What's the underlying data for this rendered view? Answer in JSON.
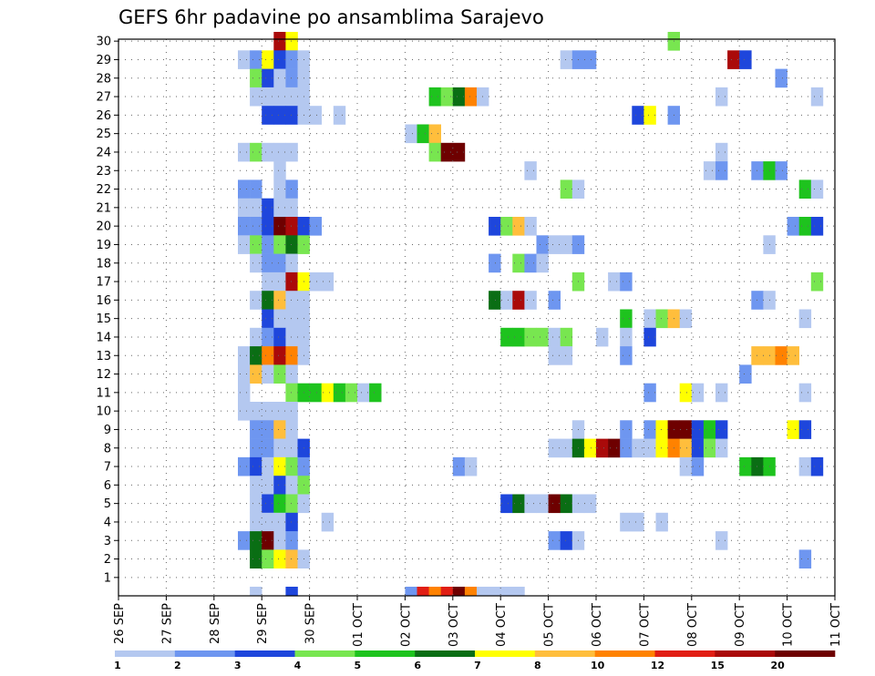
{
  "chart_data": {
    "type": "heatmap",
    "title": "GEFS 6hr padavine po ansamblima Sarajevo",
    "xlabel": "",
    "ylabel": "",
    "x_tick_labels": [
      "26 SEP",
      "27 SEP",
      "28 SEP",
      "29 SEP",
      "30 SEP",
      "01 OCT",
      "02 OCT",
      "03 OCT",
      "04 OCT",
      "05 OCT",
      "06 OCT",
      "07 OCT",
      "08 OCT",
      "09 OCT",
      "10 OCT",
      "11 OCT"
    ],
    "y_tick_labels": [
      "1",
      "2",
      "3",
      "4",
      "5",
      "6",
      "7",
      "8",
      "9",
      "10",
      "11",
      "12",
      "13",
      "14",
      "15",
      "16",
      "17",
      "18",
      "19",
      "20",
      "21",
      "22",
      "23",
      "24",
      "25",
      "26",
      "27",
      "28",
      "29",
      "30"
    ],
    "x_unit": "6-hour step from 26 SEP 00Z (4 steps per day)",
    "y_unit": "ensemble member",
    "grid": "dotted",
    "colorbar": {
      "labels": [
        "1",
        "2",
        "3",
        "4",
        "5",
        "6",
        "7",
        "8",
        "10",
        "12",
        "15",
        "20"
      ],
      "bins": [
        {
          "label": "1",
          "color": "#b4c8f0"
        },
        {
          "label": "2",
          "color": "#6e96f0"
        },
        {
          "label": "3",
          "color": "#1e46dc"
        },
        {
          "label": "4",
          "color": "#78e650"
        },
        {
          "label": "5",
          "color": "#1ec31e"
        },
        {
          "label": "6",
          "color": "#0a6e14"
        },
        {
          "label": "7",
          "color": "#ffff00"
        },
        {
          "label": "8",
          "color": "#ffbe3c"
        },
        {
          "label": "10",
          "color": "#ff8200"
        },
        {
          "label": "12",
          "color": "#e11e14"
        },
        {
          "label": "15",
          "color": "#aa0a0a"
        },
        {
          "label": "20",
          "color": "#6e0000"
        }
      ]
    },
    "cells": [
      {
        "m": 30,
        "s": [
          [
            13,
            11
          ],
          [
            14,
            7
          ],
          [
            46,
            4
          ]
        ]
      },
      {
        "m": 29,
        "s": [
          [
            10,
            1
          ],
          [
            11,
            2
          ],
          [
            12,
            7
          ],
          [
            13,
            3
          ],
          [
            14,
            2
          ],
          [
            15,
            1
          ],
          [
            37,
            1
          ],
          [
            38,
            2
          ],
          [
            39,
            2
          ],
          [
            51,
            11
          ],
          [
            52,
            3
          ]
        ]
      },
      {
        "m": 28,
        "s": [
          [
            11,
            4
          ],
          [
            12,
            3
          ],
          [
            13,
            1
          ],
          [
            14,
            2
          ],
          [
            15,
            1
          ],
          [
            55,
            2
          ]
        ]
      },
      {
        "m": 27,
        "s": [
          [
            11,
            1
          ],
          [
            12,
            1
          ],
          [
            13,
            1
          ],
          [
            14,
            1
          ],
          [
            15,
            1
          ],
          [
            26,
            5
          ],
          [
            27,
            4
          ],
          [
            28,
            6
          ],
          [
            29,
            9
          ],
          [
            30,
            1
          ],
          [
            50,
            1
          ],
          [
            58,
            1
          ]
        ]
      },
      {
        "m": 26,
        "s": [
          [
            12,
            3
          ],
          [
            13,
            3
          ],
          [
            14,
            3
          ],
          [
            15,
            1
          ],
          [
            16,
            1
          ],
          [
            18,
            1
          ],
          [
            43,
            3
          ],
          [
            44,
            7
          ],
          [
            46,
            2
          ]
        ]
      },
      {
        "m": 25,
        "s": [
          [
            24,
            1
          ],
          [
            25,
            5
          ],
          [
            26,
            8
          ]
        ]
      },
      {
        "m": 24,
        "s": [
          [
            10,
            1
          ],
          [
            11,
            4
          ],
          [
            12,
            1
          ],
          [
            13,
            1
          ],
          [
            14,
            1
          ],
          [
            26,
            4
          ],
          [
            27,
            12
          ],
          [
            28,
            12
          ],
          [
            50,
            1
          ]
        ]
      },
      {
        "m": 23,
        "s": [
          [
            13,
            1
          ],
          [
            34,
            1
          ],
          [
            49,
            1
          ],
          [
            50,
            2
          ],
          [
            53,
            2
          ],
          [
            54,
            5
          ],
          [
            55,
            2
          ]
        ]
      },
      {
        "m": 22,
        "s": [
          [
            10,
            2
          ],
          [
            11,
            2
          ],
          [
            13,
            1
          ],
          [
            14,
            2
          ],
          [
            37,
            4
          ],
          [
            38,
            1
          ],
          [
            57,
            5
          ],
          [
            58,
            1
          ]
        ]
      },
      {
        "m": 21,
        "s": [
          [
            10,
            1
          ],
          [
            11,
            1
          ],
          [
            12,
            3
          ],
          [
            13,
            1
          ],
          [
            14,
            1
          ]
        ]
      },
      {
        "m": 20,
        "s": [
          [
            10,
            2
          ],
          [
            11,
            2
          ],
          [
            12,
            3
          ],
          [
            13,
            12
          ],
          [
            14,
            11
          ],
          [
            15,
            3
          ],
          [
            16,
            2
          ],
          [
            31,
            3
          ],
          [
            32,
            4
          ],
          [
            33,
            8
          ],
          [
            34,
            1
          ],
          [
            56,
            2
          ],
          [
            57,
            5
          ],
          [
            58,
            3
          ]
        ]
      },
      {
        "m": 19,
        "s": [
          [
            10,
            1
          ],
          [
            11,
            4
          ],
          [
            12,
            2
          ],
          [
            13,
            4
          ],
          [
            14,
            6
          ],
          [
            15,
            4
          ],
          [
            35,
            2
          ],
          [
            36,
            1
          ],
          [
            37,
            1
          ],
          [
            38,
            2
          ],
          [
            54,
            1
          ]
        ]
      },
      {
        "m": 18,
        "s": [
          [
            11,
            1
          ],
          [
            12,
            2
          ],
          [
            13,
            2
          ],
          [
            14,
            1
          ],
          [
            31,
            2
          ],
          [
            33,
            4
          ],
          [
            34,
            2
          ],
          [
            35,
            1
          ]
        ]
      },
      {
        "m": 17,
        "s": [
          [
            12,
            1
          ],
          [
            13,
            1
          ],
          [
            14,
            11
          ],
          [
            15,
            7
          ],
          [
            16,
            1
          ],
          [
            17,
            1
          ],
          [
            38,
            4
          ],
          [
            41,
            1
          ],
          [
            42,
            2
          ],
          [
            58,
            4
          ]
        ]
      },
      {
        "m": 16,
        "s": [
          [
            11,
            1
          ],
          [
            12,
            6
          ],
          [
            13,
            8
          ],
          [
            14,
            1
          ],
          [
            15,
            1
          ],
          [
            31,
            6
          ],
          [
            32,
            1
          ],
          [
            33,
            11
          ],
          [
            34,
            1
          ],
          [
            36,
            2
          ],
          [
            53,
            2
          ],
          [
            54,
            1
          ]
        ]
      },
      {
        "m": 15,
        "s": [
          [
            12,
            3
          ],
          [
            13,
            1
          ],
          [
            14,
            1
          ],
          [
            15,
            1
          ],
          [
            42,
            5
          ],
          [
            44,
            1
          ],
          [
            45,
            4
          ],
          [
            46,
            8
          ],
          [
            47,
            1
          ],
          [
            57,
            1
          ]
        ]
      },
      {
        "m": 14,
        "s": [
          [
            11,
            1
          ],
          [
            12,
            2
          ],
          [
            13,
            3
          ],
          [
            14,
            1
          ],
          [
            15,
            1
          ],
          [
            32,
            5
          ],
          [
            33,
            5
          ],
          [
            34,
            4
          ],
          [
            35,
            4
          ],
          [
            36,
            1
          ],
          [
            37,
            4
          ],
          [
            40,
            1
          ],
          [
            42,
            1
          ],
          [
            44,
            3
          ]
        ]
      },
      {
        "m": 13,
        "s": [
          [
            10,
            1
          ],
          [
            11,
            6
          ],
          [
            12,
            9
          ],
          [
            13,
            11
          ],
          [
            14,
            9
          ],
          [
            15,
            1
          ],
          [
            36,
            1
          ],
          [
            37,
            1
          ],
          [
            42,
            2
          ],
          [
            53,
            8
          ],
          [
            54,
            8
          ],
          [
            55,
            9
          ],
          [
            56,
            8
          ]
        ]
      },
      {
        "m": 12,
        "s": [
          [
            10,
            1
          ],
          [
            11,
            8
          ],
          [
            12,
            1
          ],
          [
            13,
            4
          ],
          [
            14,
            1
          ],
          [
            52,
            2
          ]
        ]
      },
      {
        "m": 11,
        "s": [
          [
            10,
            1
          ],
          [
            14,
            4
          ],
          [
            15,
            5
          ],
          [
            16,
            5
          ],
          [
            17,
            7
          ],
          [
            18,
            5
          ],
          [
            19,
            4
          ],
          [
            20,
            1
          ],
          [
            21,
            5
          ],
          [
            44,
            2
          ],
          [
            47,
            7
          ],
          [
            48,
            1
          ],
          [
            50,
            1
          ],
          [
            57,
            1
          ]
        ]
      },
      {
        "m": 10,
        "s": [
          [
            10,
            1
          ],
          [
            11,
            1
          ],
          [
            12,
            1
          ],
          [
            13,
            1
          ],
          [
            14,
            1
          ]
        ]
      },
      {
        "m": 9,
        "s": [
          [
            11,
            2
          ],
          [
            12,
            2
          ],
          [
            13,
            8
          ],
          [
            14,
            1
          ],
          [
            38,
            1
          ],
          [
            42,
            2
          ],
          [
            44,
            2
          ],
          [
            45,
            7
          ],
          [
            46,
            12
          ],
          [
            47,
            12
          ],
          [
            48,
            3
          ],
          [
            49,
            5
          ],
          [
            50,
            3
          ],
          [
            56,
            7
          ],
          [
            57,
            3
          ]
        ]
      },
      {
        "m": 8,
        "s": [
          [
            11,
            2
          ],
          [
            12,
            2
          ],
          [
            13,
            1
          ],
          [
            14,
            1
          ],
          [
            15,
            3
          ],
          [
            36,
            1
          ],
          [
            37,
            1
          ],
          [
            38,
            6
          ],
          [
            39,
            7
          ],
          [
            40,
            11
          ],
          [
            41,
            12
          ],
          [
            42,
            2
          ],
          [
            43,
            1
          ],
          [
            44,
            1
          ],
          [
            45,
            7
          ],
          [
            46,
            9
          ],
          [
            47,
            8
          ],
          [
            48,
            3
          ],
          [
            49,
            4
          ],
          [
            50,
            1
          ]
        ]
      },
      {
        "m": 7,
        "s": [
          [
            10,
            2
          ],
          [
            11,
            3
          ],
          [
            12,
            1
          ],
          [
            13,
            7
          ],
          [
            14,
            4
          ],
          [
            15,
            2
          ],
          [
            28,
            2
          ],
          [
            29,
            1
          ],
          [
            47,
            1
          ],
          [
            48,
            2
          ],
          [
            52,
            5
          ],
          [
            53,
            6
          ],
          [
            54,
            5
          ],
          [
            57,
            1
          ],
          [
            58,
            3
          ]
        ]
      },
      {
        "m": 6,
        "s": [
          [
            11,
            1
          ],
          [
            12,
            1
          ],
          [
            13,
            3
          ],
          [
            14,
            1
          ],
          [
            15,
            4
          ]
        ]
      },
      {
        "m": 5,
        "s": [
          [
            11,
            1
          ],
          [
            12,
            3
          ],
          [
            13,
            5
          ],
          [
            14,
            4
          ],
          [
            15,
            1
          ],
          [
            32,
            3
          ],
          [
            33,
            6
          ],
          [
            34,
            1
          ],
          [
            35,
            1
          ],
          [
            36,
            12
          ],
          [
            37,
            6
          ],
          [
            38,
            1
          ],
          [
            39,
            1
          ]
        ]
      },
      {
        "m": 4,
        "s": [
          [
            11,
            1
          ],
          [
            12,
            1
          ],
          [
            13,
            1
          ],
          [
            14,
            3
          ],
          [
            17,
            1
          ],
          [
            42,
            1
          ],
          [
            43,
            1
          ],
          [
            45,
            1
          ]
        ]
      },
      {
        "m": 3,
        "s": [
          [
            10,
            2
          ],
          [
            11,
            6
          ],
          [
            12,
            12
          ],
          [
            13,
            1
          ],
          [
            14,
            2
          ],
          [
            36,
            2
          ],
          [
            37,
            3
          ],
          [
            38,
            1
          ],
          [
            50,
            1
          ]
        ]
      },
      {
        "m": 2,
        "s": [
          [
            11,
            6
          ],
          [
            12,
            4
          ],
          [
            13,
            7
          ],
          [
            14,
            8
          ],
          [
            15,
            1
          ],
          [
            57,
            2
          ]
        ]
      }
    ],
    "bottom_strip": [
      [
        11,
        1
      ],
      [
        14,
        3
      ],
      [
        24,
        2
      ],
      [
        25,
        10
      ],
      [
        26,
        9
      ],
      [
        27,
        10
      ],
      [
        28,
        12
      ],
      [
        29,
        9
      ],
      [
        30,
        1
      ],
      [
        31,
        1
      ],
      [
        32,
        1
      ],
      [
        33,
        1
      ]
    ]
  }
}
